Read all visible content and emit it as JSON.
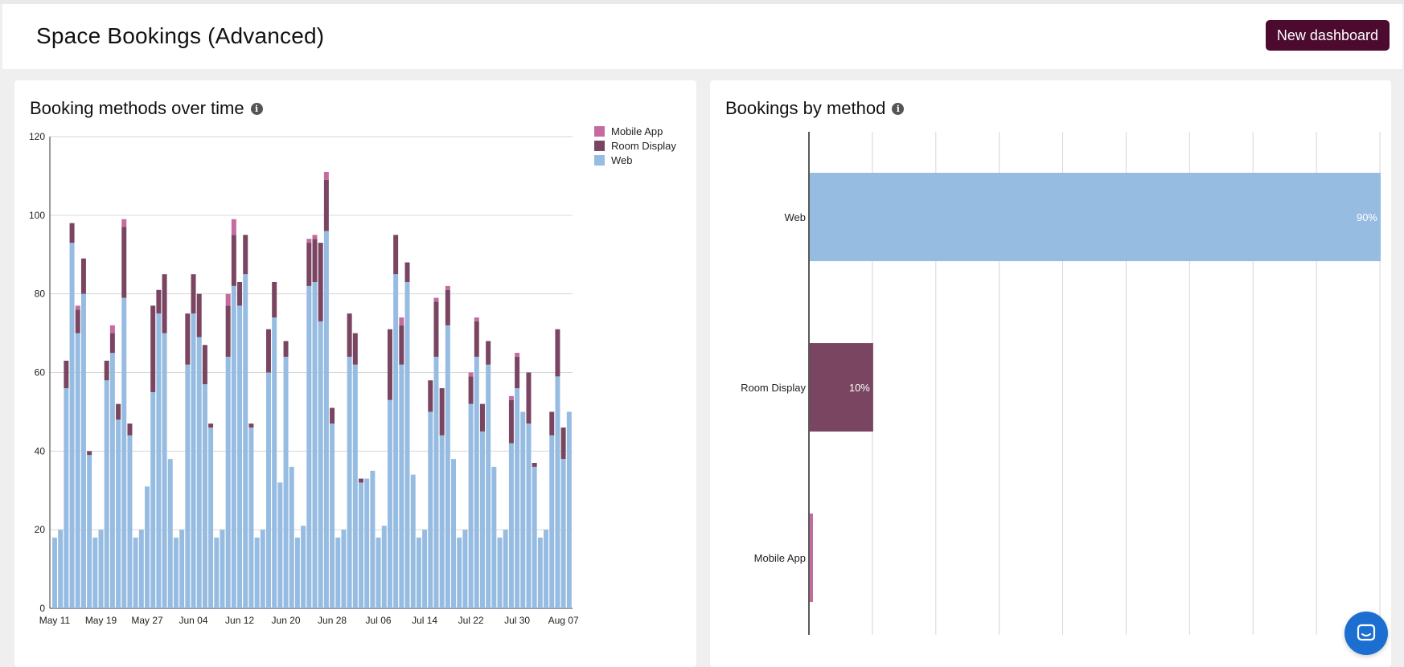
{
  "header": {
    "title": "Space Bookings (Advanced)",
    "new_dashboard_label": "New dashboard"
  },
  "chart_data": [
    {
      "type": "bar",
      "stacked": true,
      "title": "Booking methods over time",
      "ylim": [
        0,
        120
      ],
      "yticks": [
        0,
        20,
        40,
        60,
        80,
        100,
        120
      ],
      "xtick_labels": [
        "May 11",
        "May 19",
        "May 27",
        "Jun 04",
        "Jun 12",
        "Jun 20",
        "Jun 28",
        "Jul 06",
        "Jul 14",
        "Jul 22",
        "Jul 30",
        "Aug 07"
      ],
      "legend_position": "top-right",
      "grid": true,
      "series": [
        {
          "name": "Web",
          "color": "#97bce2",
          "values": [
            18,
            20,
            56,
            93,
            70,
            80,
            39,
            18,
            20,
            58,
            65,
            48,
            79,
            44,
            18,
            20,
            31,
            55,
            75,
            70,
            38,
            18,
            20,
            62,
            75,
            69,
            57,
            46,
            18,
            20,
            64,
            82,
            77,
            85,
            46,
            18,
            20,
            60,
            74,
            32,
            64,
            36,
            18,
            21,
            82,
            83,
            73,
            96,
            47,
            18,
            20,
            64,
            62,
            32,
            33,
            35,
            18,
            21,
            53,
            85,
            62,
            83,
            34,
            18,
            20,
            50,
            64,
            44,
            72,
            38,
            18,
            20,
            52,
            64,
            45,
            62,
            36,
            18,
            20,
            42,
            56,
            50,
            47,
            36,
            18,
            20,
            44,
            59,
            38,
            50
          ]
        },
        {
          "name": "Room Display",
          "color": "#7a4560",
          "values": [
            0,
            0,
            7,
            5,
            6,
            9,
            1,
            0,
            0,
            5,
            5,
            4,
            18,
            3,
            0,
            0,
            0,
            22,
            6,
            15,
            0,
            0,
            0,
            13,
            10,
            11,
            10,
            1,
            0,
            0,
            13,
            13,
            6,
            10,
            1,
            0,
            0,
            11,
            9,
            0,
            4,
            0,
            0,
            0,
            11,
            11,
            20,
            13,
            4,
            0,
            0,
            11,
            8,
            1,
            0,
            0,
            0,
            0,
            18,
            10,
            10,
            5,
            0,
            0,
            0,
            8,
            14,
            12,
            9,
            0,
            0,
            0,
            7,
            9,
            7,
            6,
            0,
            0,
            0,
            11,
            8,
            0,
            13,
            1,
            0,
            0,
            6,
            12,
            8,
            0
          ]
        },
        {
          "name": "Mobile App",
          "color": "#c46c9f",
          "values": [
            0,
            0,
            0,
            0,
            1,
            0,
            0,
            0,
            0,
            0,
            2,
            0,
            2,
            0,
            0,
            0,
            0,
            0,
            0,
            0,
            0,
            0,
            0,
            0,
            0,
            0,
            0,
            0,
            0,
            0,
            3,
            4,
            0,
            0,
            0,
            0,
            0,
            0,
            0,
            0,
            0,
            0,
            0,
            0,
            1,
            1,
            0,
            2,
            0,
            0,
            0,
            0,
            0,
            0,
            0,
            0,
            0,
            0,
            0,
            0,
            2,
            0,
            0,
            0,
            0,
            0,
            1,
            0,
            1,
            0,
            0,
            0,
            1,
            1,
            0,
            0,
            0,
            0,
            0,
            1,
            1,
            0,
            0,
            0,
            0,
            0,
            0,
            0,
            0,
            0
          ]
        }
      ]
    },
    {
      "type": "bar",
      "orientation": "horizontal",
      "title": "Bookings by method",
      "categories": [
        "Web",
        "Room Display",
        "Mobile App"
      ],
      "values": [
        90,
        10,
        0.5
      ],
      "labels": [
        "90%",
        "10%",
        ""
      ],
      "colors": [
        "#97bce2",
        "#7a4560",
        "#c46c9f"
      ],
      "xlim": [
        0,
        90
      ],
      "grid": true
    }
  ]
}
